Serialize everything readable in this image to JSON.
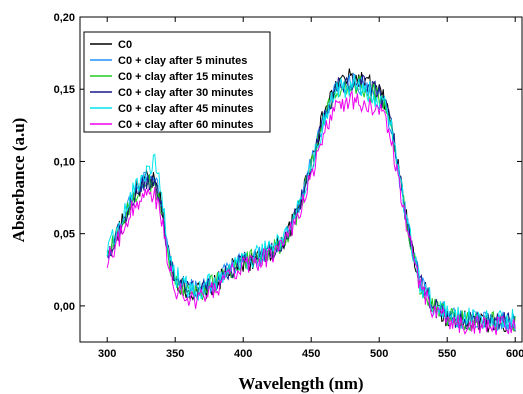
{
  "chart_data": {
    "type": "line",
    "title": "",
    "xlabel": "Wavelength (nm)",
    "ylabel": "Absorbance (a.u)",
    "xlim": [
      280,
      605
    ],
    "ylim": [
      -0.025,
      0.2
    ],
    "x_ticks": [
      "300",
      "350",
      "400",
      "450",
      "500",
      "550",
      "600"
    ],
    "y_ticks": [
      "0,00",
      "0,05",
      "0,10",
      "0,15",
      "0,20"
    ],
    "x_tick_values": [
      300,
      350,
      400,
      450,
      500,
      550,
      600
    ],
    "y_tick_values": [
      0.0,
      0.05,
      0.1,
      0.15,
      0.2
    ],
    "grid": false,
    "legend_position": "top-left",
    "x": [
      300,
      310,
      320,
      330,
      335,
      340,
      345,
      350,
      360,
      370,
      380,
      390,
      400,
      410,
      420,
      430,
      440,
      450,
      460,
      470,
      480,
      490,
      500,
      505,
      510,
      520,
      530,
      540,
      550,
      560,
      580,
      600
    ],
    "series": [
      {
        "name": "C0",
        "color": "#000000",
        "noise": 0.007,
        "values": [
          0.035,
          0.055,
          0.078,
          0.088,
          0.085,
          0.07,
          0.035,
          0.018,
          0.01,
          0.01,
          0.015,
          0.025,
          0.03,
          0.032,
          0.038,
          0.045,
          0.065,
          0.1,
          0.135,
          0.155,
          0.158,
          0.155,
          0.148,
          0.14,
          0.12,
          0.06,
          0.015,
          0.0,
          -0.008,
          -0.01,
          -0.012,
          -0.012
        ]
      },
      {
        "name": "C0 + clay after 5 minutes",
        "color": "#1e90ff",
        "noise": 0.007,
        "values": [
          0.036,
          0.056,
          0.079,
          0.092,
          0.088,
          0.072,
          0.036,
          0.02,
          0.012,
          0.012,
          0.017,
          0.026,
          0.031,
          0.033,
          0.039,
          0.046,
          0.066,
          0.098,
          0.132,
          0.152,
          0.155,
          0.152,
          0.146,
          0.138,
          0.119,
          0.059,
          0.016,
          0.001,
          -0.006,
          -0.009,
          -0.011,
          -0.011
        ]
      },
      {
        "name": "C0 + clay after 15 minutes",
        "color": "#22cc22",
        "noise": 0.007,
        "values": [
          0.034,
          0.054,
          0.076,
          0.086,
          0.083,
          0.068,
          0.034,
          0.017,
          0.01,
          0.011,
          0.016,
          0.025,
          0.031,
          0.033,
          0.038,
          0.045,
          0.064,
          0.097,
          0.131,
          0.151,
          0.154,
          0.151,
          0.145,
          0.137,
          0.118,
          0.058,
          0.015,
          0.0,
          -0.007,
          -0.01,
          -0.011,
          -0.011
        ]
      },
      {
        "name": "C0 + clay after 30 minutes",
        "color": "#1a1a8c",
        "noise": 0.007,
        "values": [
          0.035,
          0.055,
          0.077,
          0.087,
          0.084,
          0.069,
          0.035,
          0.018,
          0.011,
          0.011,
          0.016,
          0.025,
          0.031,
          0.033,
          0.038,
          0.045,
          0.065,
          0.098,
          0.133,
          0.153,
          0.156,
          0.153,
          0.147,
          0.139,
          0.12,
          0.06,
          0.016,
          0.0,
          -0.007,
          -0.01,
          -0.011,
          -0.011
        ]
      },
      {
        "name": "C0 + clay after 45 minutes",
        "color": "#00e5ee",
        "noise": 0.008,
        "values": [
          0.037,
          0.058,
          0.082,
          0.095,
          0.1,
          0.075,
          0.037,
          0.021,
          0.012,
          0.012,
          0.017,
          0.026,
          0.032,
          0.034,
          0.04,
          0.047,
          0.066,
          0.097,
          0.13,
          0.15,
          0.153,
          0.15,
          0.144,
          0.137,
          0.118,
          0.058,
          0.016,
          0.001,
          -0.006,
          -0.009,
          -0.01,
          -0.01
        ]
      },
      {
        "name": "C0 + clay after 60 minutes",
        "color": "#ee00ee",
        "noise": 0.007,
        "values": [
          0.03,
          0.05,
          0.07,
          0.08,
          0.077,
          0.06,
          0.028,
          0.012,
          0.004,
          0.005,
          0.012,
          0.022,
          0.028,
          0.03,
          0.035,
          0.042,
          0.06,
          0.09,
          0.122,
          0.14,
          0.143,
          0.14,
          0.135,
          0.128,
          0.11,
          0.055,
          0.012,
          -0.003,
          -0.01,
          -0.013,
          -0.014,
          -0.014
        ]
      }
    ]
  }
}
